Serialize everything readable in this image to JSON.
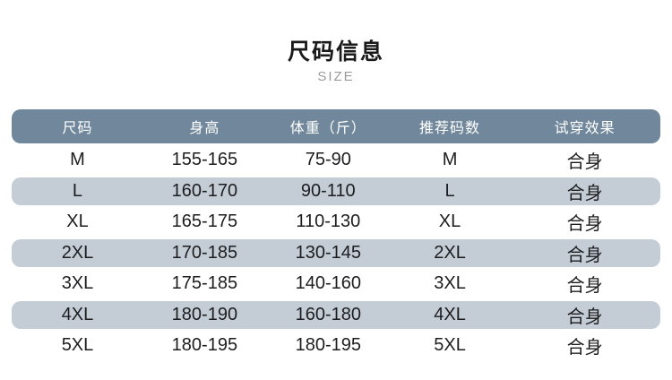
{
  "page": {
    "title": "尺码信息",
    "subtitle": "SIZE"
  },
  "colors": {
    "header_bg": "#71889c",
    "row_alt_bg": "#c4cdd6",
    "title_color": "#1a1a1a",
    "subtitle_color": "#9a9a9a",
    "cell_color": "#1d1d1f"
  },
  "chart_data": {
    "type": "table",
    "title": "尺码信息",
    "subtitle": "SIZE",
    "columns": [
      "尺码",
      "身高",
      "体重（斤）",
      "推荐码数",
      "试穿效果"
    ],
    "rows": [
      [
        "M",
        "155-165",
        "75-90",
        "M",
        "合身"
      ],
      [
        "L",
        "160-170",
        "90-110",
        "L",
        "合身"
      ],
      [
        "XL",
        "165-175",
        "110-130",
        "XL",
        "合身"
      ],
      [
        "2XL",
        "170-185",
        "130-145",
        "2XL",
        "合身"
      ],
      [
        "3XL",
        "175-185",
        "140-160",
        "3XL",
        "合身"
      ],
      [
        "4XL",
        "180-190",
        "160-180",
        "4XL",
        "合身"
      ],
      [
        "5XL",
        "180-195",
        "180-195",
        "5XL",
        "合身"
      ]
    ],
    "layout_hints": {
      "header_style": "rounded slate-blue bar, white text",
      "row_style": "alternating white / light blue-gray rounded pills",
      "alternate_rows_shaded": [
        "L",
        "2XL",
        "4XL"
      ]
    }
  }
}
